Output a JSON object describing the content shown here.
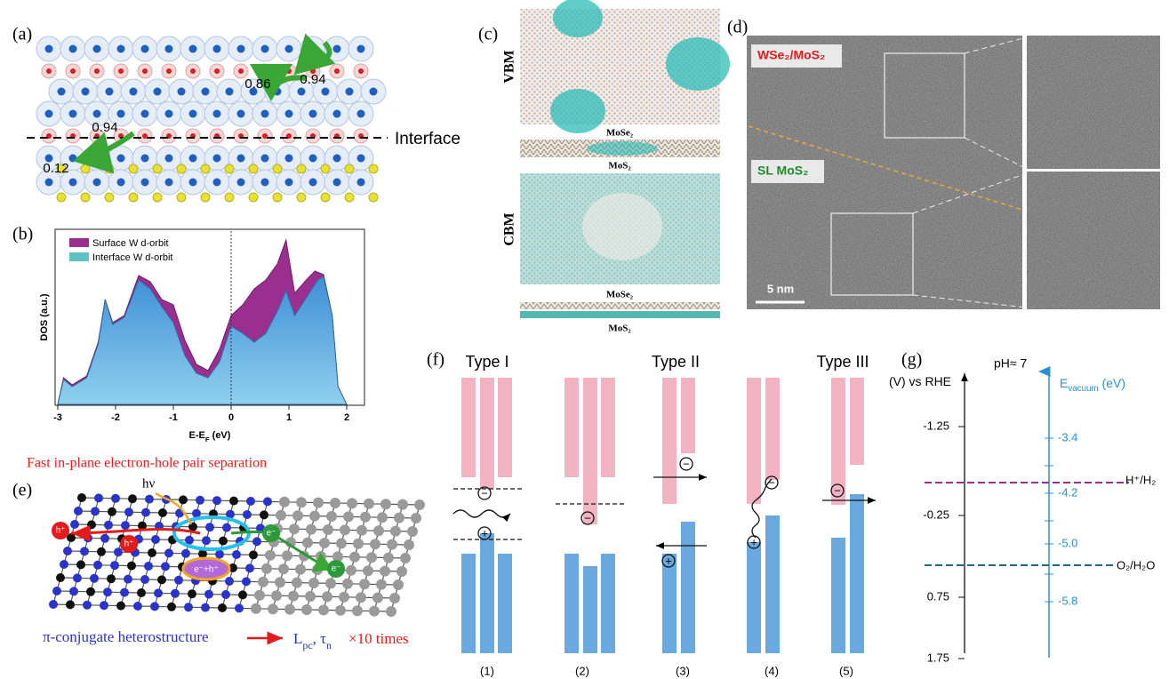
{
  "panel_a": {
    "label": "(a)",
    "values": [
      "0.86",
      "0.94",
      "0.94",
      "0.12"
    ],
    "interface": "Interface"
  },
  "panel_b": {
    "label": "(b)",
    "legend": [
      "Surface W d-orbit",
      "Interface W d-orbit"
    ],
    "y_label": "DOS (a.u.)",
    "x_label": {
      "text": "E-E",
      "sub": "F",
      "unit": " (eV)"
    },
    "x_ticks": [
      "-3",
      "-2",
      "-1",
      "0",
      "1",
      "2"
    ]
  },
  "panel_c": {
    "label": "(c)",
    "vbm": "VBM",
    "cbm": "CBM",
    "layers": [
      "MoSe₂",
      "MoS₂",
      "MoSe₂",
      "MoS₂"
    ]
  },
  "panel_d": {
    "label": "(d)",
    "hetero": "WSe₂/MoS₂",
    "single": "SL MoS₂",
    "scale": "5 nm"
  },
  "panel_e": {
    "label": "(e)",
    "title": "Fast in-plane electron-hole pair separation",
    "photon": "hν",
    "carriers": [
      "h⁺",
      "h⁺",
      "e⁻",
      "e⁻",
      "e⁻+h⁺"
    ],
    "caption": "π-conjugate heterostructure",
    "metrics": {
      "l": "L",
      "l_sub": "pc",
      "sep": ", ",
      "tau": "τ",
      "tau_sub": "n"
    },
    "gain": "×10 times"
  },
  "panel_f": {
    "label": "(f)",
    "types": [
      "Type I",
      "Type II",
      "Type III"
    ],
    "cases": [
      "(1)",
      "(2)",
      "(3)",
      "(4)",
      "(5)"
    ],
    "electron": "−",
    "hole": "+"
  },
  "panel_g": {
    "label": "(g)",
    "left_axis": {
      "unit": "(V)",
      "vs": " vs ",
      "ref": "RHE"
    },
    "ph": "pH≈ 7",
    "right_axis": {
      "text": "E",
      "sub": "vacuum",
      "unit": " (eV)"
    },
    "left_ticks": [
      "-1.25",
      "-0.25",
      "0.75",
      "1.75"
    ],
    "right_ticks": [
      "-3.4",
      "-4.2",
      "-5.0",
      "-5.8"
    ],
    "levels": [
      "H⁺/H₂",
      "O₂/H₂O"
    ]
  }
}
